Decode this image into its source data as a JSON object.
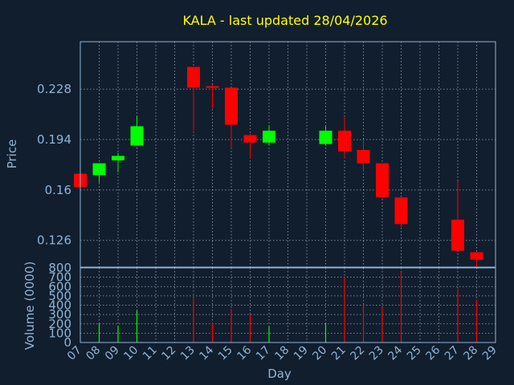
{
  "chart_data": {
    "type": "candlestick",
    "title": "KALA - last updated 28/04/2026",
    "xlabel": "Day",
    "days": [
      "07",
      "08",
      "09",
      "10",
      "11",
      "12",
      "13",
      "14",
      "15",
      "16",
      "17",
      "18",
      "19",
      "20",
      "21",
      "22",
      "23",
      "24",
      "25",
      "26",
      "27",
      "28",
      "29"
    ],
    "price": {
      "ylabel": "Price",
      "yticks": [
        0.126,
        0.16,
        0.194,
        0.228
      ],
      "ylim": [
        0.108,
        0.26
      ],
      "candles": [
        {
          "day": "07",
          "open": 0.171,
          "high": 0.172,
          "low": 0.162,
          "close": 0.162
        },
        {
          "day": "08",
          "open": 0.17,
          "high": 0.178,
          "low": 0.165,
          "close": 0.178
        },
        {
          "day": "09",
          "open": 0.18,
          "high": 0.185,
          "low": 0.172,
          "close": 0.183
        },
        {
          "day": "10",
          "open": 0.19,
          "high": 0.21,
          "low": 0.19,
          "close": 0.203
        },
        {
          "day": "13",
          "open": 0.243,
          "high": 0.243,
          "low": 0.2,
          "close": 0.229
        },
        {
          "day": "14",
          "open": 0.23,
          "high": 0.231,
          "low": 0.215,
          "close": 0.229
        },
        {
          "day": "15",
          "open": 0.229,
          "high": 0.229,
          "low": 0.189,
          "close": 0.204
        },
        {
          "day": "16",
          "open": 0.197,
          "high": 0.198,
          "low": 0.181,
          "close": 0.192
        },
        {
          "day": "17",
          "open": 0.192,
          "high": 0.203,
          "low": 0.19,
          "close": 0.2
        },
        {
          "day": "20",
          "open": 0.191,
          "high": 0.203,
          "low": 0.19,
          "close": 0.2
        },
        {
          "day": "21",
          "open": 0.2,
          "high": 0.209,
          "low": 0.181,
          "close": 0.186
        },
        {
          "day": "22",
          "open": 0.187,
          "high": 0.194,
          "low": 0.173,
          "close": 0.178
        },
        {
          "day": "23",
          "open": 0.178,
          "high": 0.178,
          "low": 0.155,
          "close": 0.155
        },
        {
          "day": "24",
          "open": 0.155,
          "high": 0.155,
          "low": 0.135,
          "close": 0.137
        },
        {
          "day": "27",
          "open": 0.14,
          "high": 0.166,
          "low": 0.12,
          "close": 0.119
        },
        {
          "day": "28",
          "open": 0.118,
          "high": 0.118,
          "low": 0.1,
          "close": 0.113
        }
      ]
    },
    "volume": {
      "ylabel": "Volume (0000)",
      "yticks": [
        0,
        100,
        200,
        300,
        400,
        500,
        600,
        700,
        800
      ],
      "ylim": [
        0,
        800
      ],
      "bars": [
        {
          "day": "07",
          "value": 0,
          "color": "#ff0000"
        },
        {
          "day": "08",
          "value": 200,
          "color": "#00ff00"
        },
        {
          "day": "09",
          "value": 180,
          "color": "#00ff00"
        },
        {
          "day": "10",
          "value": 340,
          "color": "#00ff00"
        },
        {
          "day": "13",
          "value": 470,
          "color": "#ff0000"
        },
        {
          "day": "14",
          "value": 210,
          "color": "#ff0000"
        },
        {
          "day": "15",
          "value": 360,
          "color": "#ff0000"
        },
        {
          "day": "16",
          "value": 300,
          "color": "#ff0000"
        },
        {
          "day": "17",
          "value": 170,
          "color": "#00ff00"
        },
        {
          "day": "20",
          "value": 200,
          "color": "#00ff00"
        },
        {
          "day": "21",
          "value": 700,
          "color": "#ff0000"
        },
        {
          "day": "22",
          "value": 410,
          "color": "#ff0000"
        },
        {
          "day": "23",
          "value": 370,
          "color": "#ff0000"
        },
        {
          "day": "24",
          "value": 760,
          "color": "#ff0000"
        },
        {
          "day": "27",
          "value": 570,
          "color": "#ff0000"
        },
        {
          "day": "28",
          "value": 460,
          "color": "#ff0000"
        }
      ]
    },
    "colors": {
      "background": "#111e2e",
      "up": "#00ff00",
      "down": "#ff0000",
      "title": "#ffff00",
      "axis": "#8fb4d6",
      "grid": "#c8d2de"
    },
    "grid": true
  }
}
